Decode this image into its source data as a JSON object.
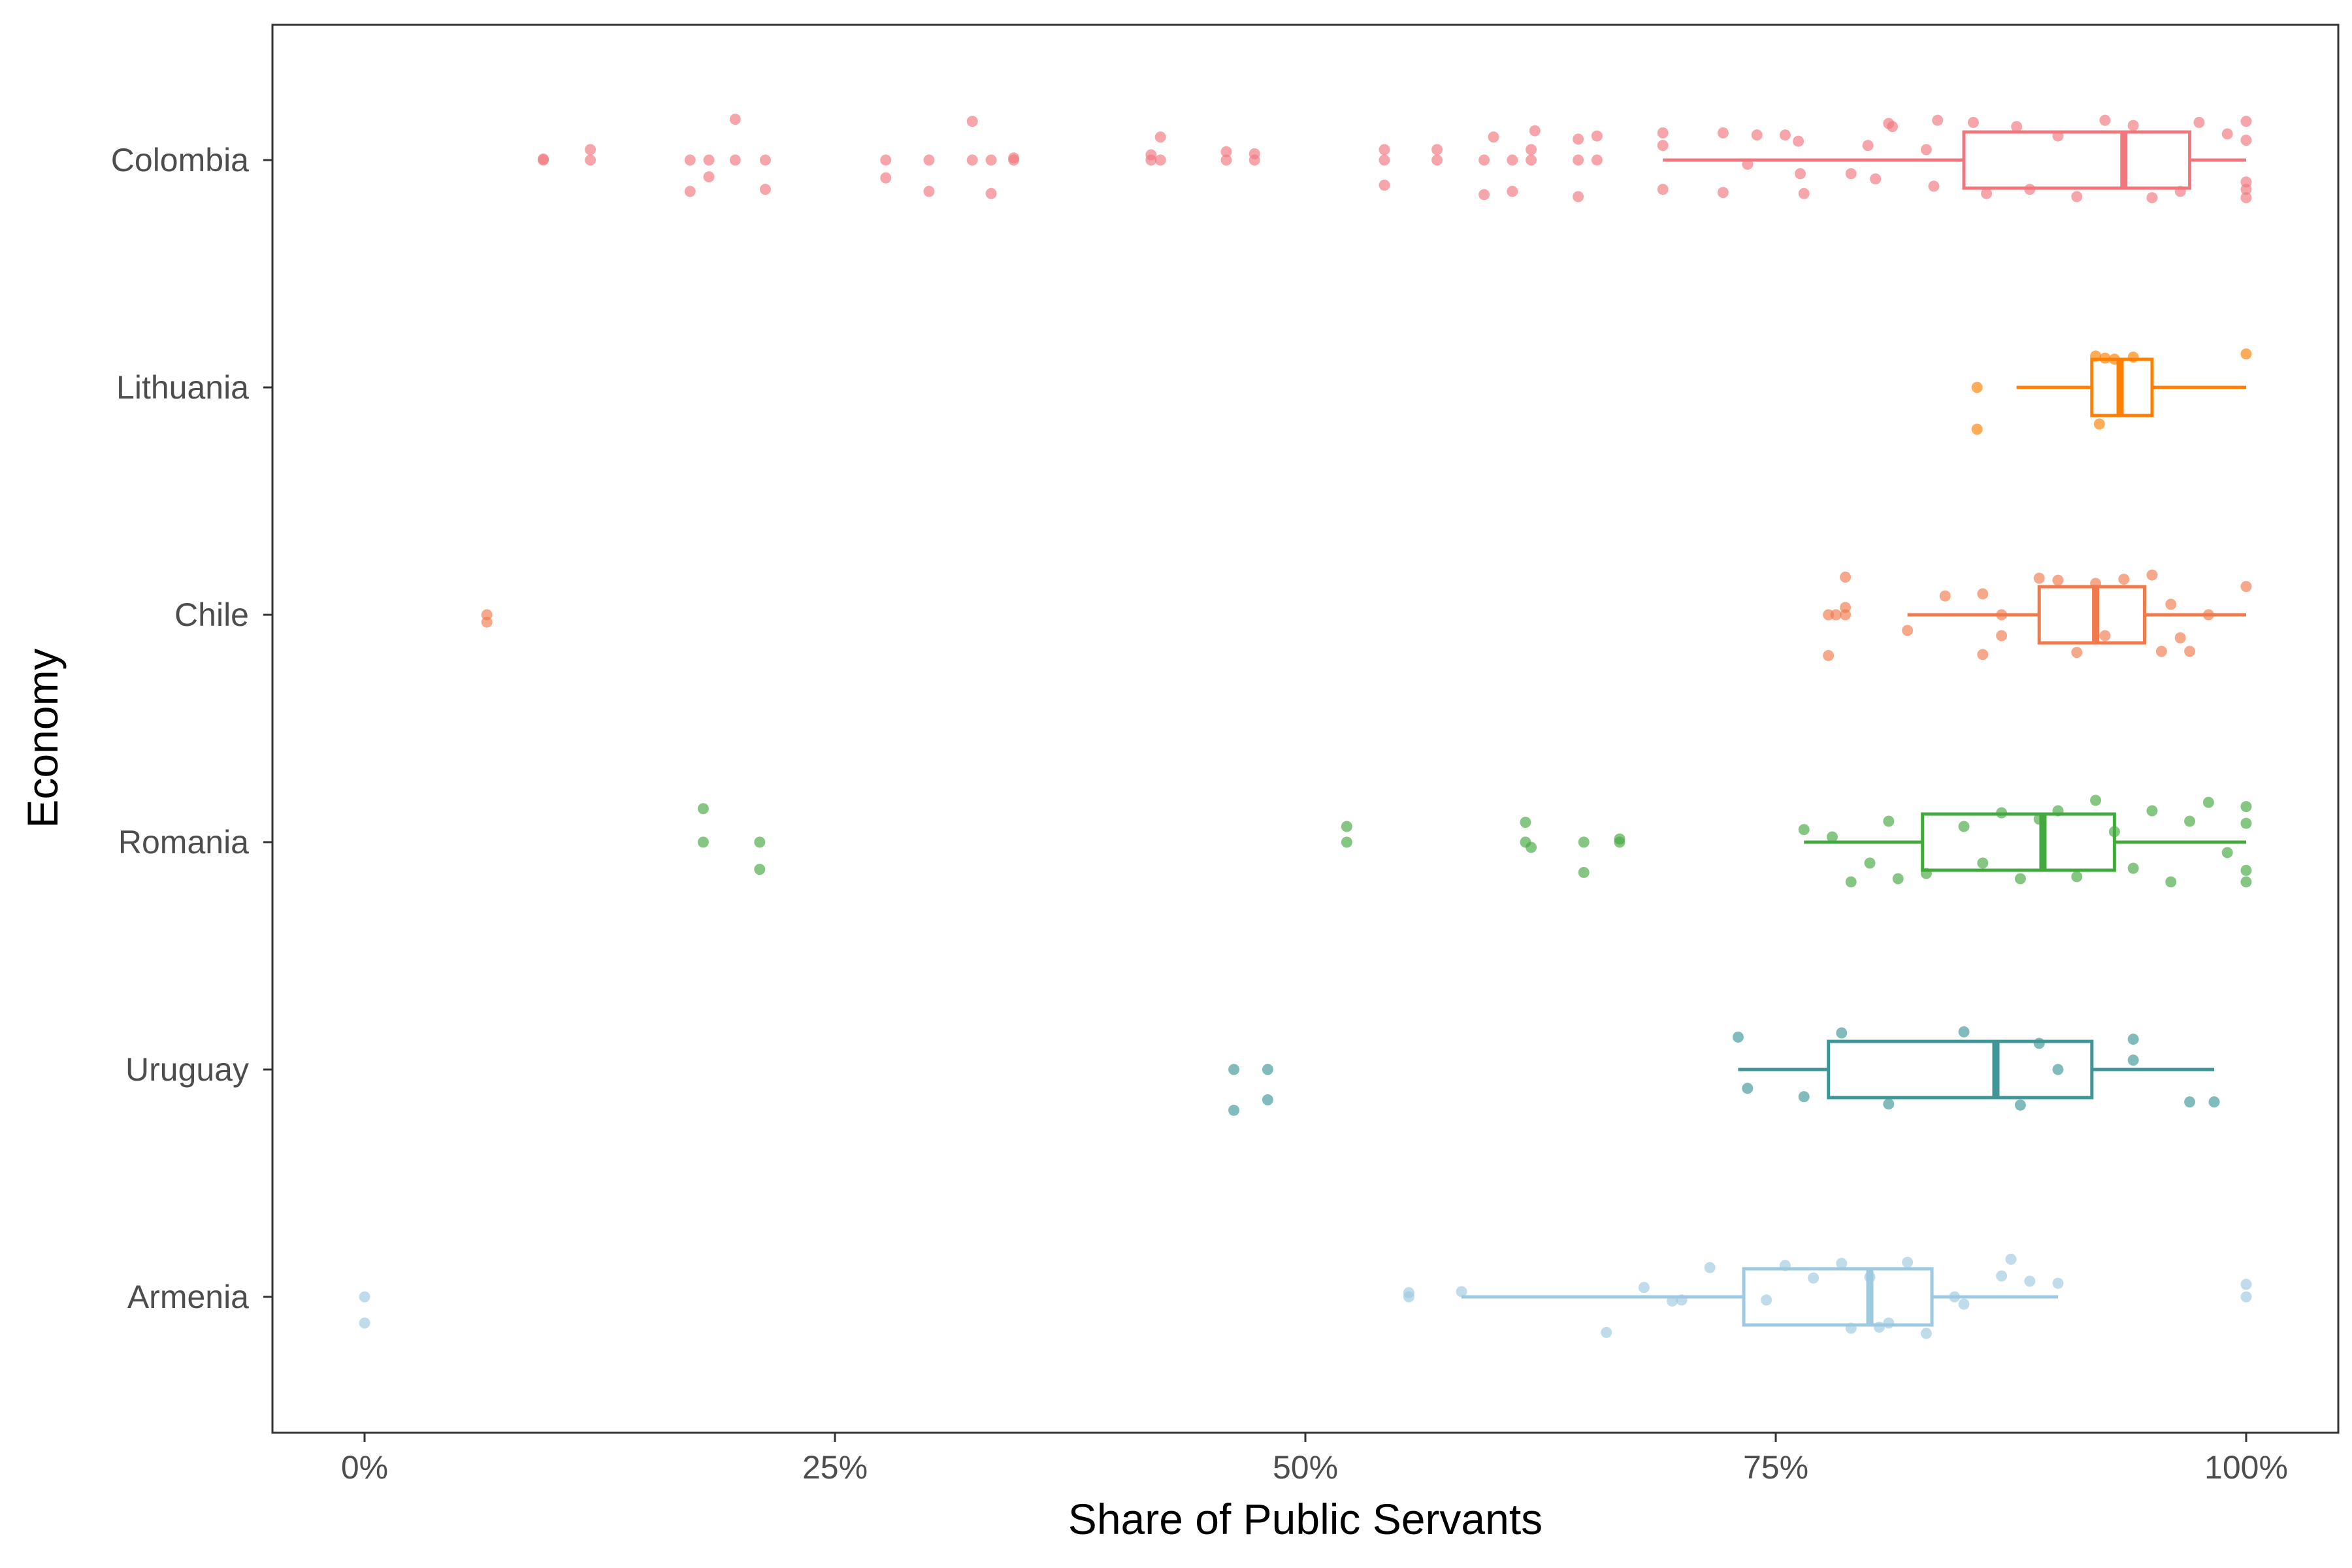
{
  "chart_data": {
    "type": "scatter",
    "subtype": "horizontal boxplot with jittered points",
    "xlabel": "Share of Public Servants",
    "ylabel": "Economy",
    "xlim": [
      0,
      1
    ],
    "x_ticks": [
      {
        "value": 0,
        "label": "0%"
      },
      {
        "value": 0.25,
        "label": "25%"
      },
      {
        "value": 0.5,
        "label": "50%"
      },
      {
        "value": 0.75,
        "label": "75%"
      },
      {
        "value": 1,
        "label": "100%"
      }
    ],
    "grid": false,
    "legend": "none",
    "series": [
      {
        "name": "Colombia",
        "color": "#F1777E",
        "box": {
          "whisker_low": 0.69,
          "q1": 0.85,
          "median": 0.935,
          "q3": 0.97,
          "whisker_high": 1.0
        },
        "points": [
          [
            0.095,
            0.0
          ],
          [
            0.095,
            0.01
          ],
          [
            0.12,
            0.0
          ],
          [
            0.12,
            0.1
          ],
          [
            0.173,
            0.0
          ],
          [
            0.173,
            -0.3
          ],
          [
            0.183,
            0.0
          ],
          [
            0.183,
            -0.16
          ],
          [
            0.197,
            0.0
          ],
          [
            0.197,
            0.39
          ],
          [
            0.213,
            0.0
          ],
          [
            0.213,
            -0.28
          ],
          [
            0.277,
            0.0
          ],
          [
            0.277,
            -0.17
          ],
          [
            0.3,
            0.0
          ],
          [
            0.3,
            -0.3
          ],
          [
            0.323,
            0.0
          ],
          [
            0.323,
            0.37
          ],
          [
            0.333,
            0.0
          ],
          [
            0.333,
            -0.32
          ],
          [
            0.345,
            0.0
          ],
          [
            0.345,
            0.02
          ],
          [
            0.418,
            0.0
          ],
          [
            0.418,
            0.05
          ],
          [
            0.423,
            0.0
          ],
          [
            0.423,
            0.22
          ],
          [
            0.458,
            0.0
          ],
          [
            0.458,
            0.08
          ],
          [
            0.473,
            0.0
          ],
          [
            0.473,
            0.06
          ],
          [
            0.542,
            0.0
          ],
          [
            0.542,
            0.1
          ],
          [
            0.542,
            -0.24
          ],
          [
            0.57,
            0.0
          ],
          [
            0.57,
            0.1
          ],
          [
            0.595,
            0.0
          ],
          [
            0.595,
            -0.33
          ],
          [
            0.6,
            0.22
          ],
          [
            0.61,
            0.0
          ],
          [
            0.61,
            -0.3
          ],
          [
            0.62,
            0.0
          ],
          [
            0.62,
            0.1
          ],
          [
            0.622,
            0.28
          ],
          [
            0.645,
            0.0
          ],
          [
            0.645,
            -0.35
          ],
          [
            0.645,
            0.2
          ],
          [
            0.655,
            0.0
          ],
          [
            0.655,
            0.23
          ],
          [
            0.69,
            0.26
          ],
          [
            0.69,
            0.14
          ],
          [
            0.69,
            -0.28
          ],
          [
            0.722,
            0.26
          ],
          [
            0.722,
            -0.31
          ],
          [
            0.74,
            0.24
          ],
          [
            0.755,
            0.24
          ],
          [
            0.762,
            0.18
          ],
          [
            0.735,
            -0.04
          ],
          [
            0.763,
            -0.13
          ],
          [
            0.79,
            -0.13
          ],
          [
            0.765,
            -0.32
          ],
          [
            0.803,
            -0.18
          ],
          [
            0.799,
            0.14
          ],
          [
            0.81,
            0.35
          ],
          [
            0.812,
            0.32
          ],
          [
            0.836,
            0.38
          ],
          [
            0.83,
            0.1
          ],
          [
            0.834,
            -0.25
          ],
          [
            0.855,
            0.36
          ],
          [
            0.862,
            -0.32
          ],
          [
            0.878,
            0.32
          ],
          [
            0.885,
            -0.28
          ],
          [
            0.9,
            0.23
          ],
          [
            0.91,
            -0.35
          ],
          [
            0.925,
            0.38
          ],
          [
            0.94,
            0.33
          ],
          [
            0.95,
            -0.36
          ],
          [
            0.965,
            -0.3
          ],
          [
            0.975,
            0.36
          ],
          [
            0.99,
            0.25
          ],
          [
            1.0,
            0.37
          ],
          [
            1.0,
            -0.28
          ],
          [
            1.0,
            -0.36
          ],
          [
            1.0,
            -0.21
          ],
          [
            1.0,
            0.19
          ]
        ]
      },
      {
        "name": "Lithuania",
        "color": "#FF8000",
        "box": {
          "whisker_low": 0.878,
          "q1": 0.918,
          "median": 0.933,
          "q3": 0.95,
          "whisker_high": 1.0
        },
        "points": [
          [
            0.857,
            0.0
          ],
          [
            0.857,
            -0.4
          ],
          [
            0.92,
            0.3
          ],
          [
            0.925,
            0.28
          ],
          [
            0.93,
            0.27
          ],
          [
            0.94,
            0.29
          ],
          [
            0.922,
            -0.35
          ],
          [
            1.0,
            0.32
          ]
        ]
      },
      {
        "name": "Chile",
        "color": "#F07A4B",
        "box": {
          "whisker_low": 0.82,
          "q1": 0.89,
          "median": 0.92,
          "q3": 0.946,
          "whisker_high": 1.0
        },
        "points": [
          [
            0.065,
            0.0
          ],
          [
            0.065,
            -0.07
          ],
          [
            0.778,
            0.0
          ],
          [
            0.782,
            0.0
          ],
          [
            0.787,
            0.0
          ],
          [
            0.787,
            0.36
          ],
          [
            0.787,
            0.07
          ],
          [
            0.778,
            -0.39
          ],
          [
            0.82,
            -0.15
          ],
          [
            0.84,
            0.18
          ],
          [
            0.86,
            0.2
          ],
          [
            0.86,
            -0.38
          ],
          [
            0.87,
            0.0
          ],
          [
            0.87,
            -0.2
          ],
          [
            0.89,
            0.35
          ],
          [
            0.9,
            0.33
          ],
          [
            0.91,
            -0.36
          ],
          [
            0.92,
            0.3
          ],
          [
            0.925,
            -0.2
          ],
          [
            0.935,
            0.34
          ],
          [
            0.95,
            0.38
          ],
          [
            0.955,
            -0.35
          ],
          [
            0.96,
            0.1
          ],
          [
            0.965,
            -0.22
          ],
          [
            0.97,
            -0.35
          ],
          [
            0.98,
            0.0
          ],
          [
            1.0,
            0.27
          ]
        ]
      },
      {
        "name": "Romania",
        "color": "#43A93F",
        "box": {
          "whisker_low": 0.765,
          "q1": 0.828,
          "median": 0.892,
          "q3": 0.93,
          "whisker_high": 1.0
        },
        "points": [
          [
            0.18,
            0.0
          ],
          [
            0.18,
            0.32
          ],
          [
            0.21,
            0.0
          ],
          [
            0.21,
            -0.26
          ],
          [
            0.522,
            0.0
          ],
          [
            0.522,
            0.15
          ],
          [
            0.617,
            0.0
          ],
          [
            0.617,
            0.19
          ],
          [
            0.62,
            -0.05
          ],
          [
            0.648,
            0.0
          ],
          [
            0.648,
            -0.29
          ],
          [
            0.667,
            0.0
          ],
          [
            0.667,
            0.03
          ],
          [
            0.765,
            0.12
          ],
          [
            0.78,
            0.05
          ],
          [
            0.79,
            -0.38
          ],
          [
            0.8,
            -0.2
          ],
          [
            0.81,
            0.2
          ],
          [
            0.815,
            -0.35
          ],
          [
            0.83,
            -0.3
          ],
          [
            0.85,
            0.15
          ],
          [
            0.86,
            -0.2
          ],
          [
            0.87,
            0.28
          ],
          [
            0.88,
            -0.35
          ],
          [
            0.89,
            0.22
          ],
          [
            0.9,
            0.3
          ],
          [
            0.91,
            -0.33
          ],
          [
            0.92,
            0.4
          ],
          [
            0.93,
            0.1
          ],
          [
            0.94,
            -0.25
          ],
          [
            0.95,
            0.3
          ],
          [
            0.96,
            -0.38
          ],
          [
            0.97,
            0.2
          ],
          [
            0.98,
            0.38
          ],
          [
            0.99,
            -0.1
          ],
          [
            1.0,
            0.34
          ],
          [
            1.0,
            -0.27
          ],
          [
            1.0,
            -0.38
          ],
          [
            1.0,
            0.18
          ]
        ]
      },
      {
        "name": "Uruguay",
        "color": "#3E9796",
        "box": {
          "whisker_low": 0.73,
          "q1": 0.778,
          "median": 0.867,
          "q3": 0.918,
          "whisker_high": 0.983
        },
        "points": [
          [
            0.462,
            0.0
          ],
          [
            0.462,
            -0.39
          ],
          [
            0.48,
            0.0
          ],
          [
            0.48,
            -0.29
          ],
          [
            0.73,
            0.31
          ],
          [
            0.735,
            -0.18
          ],
          [
            0.765,
            -0.26
          ],
          [
            0.785,
            0.35
          ],
          [
            0.81,
            -0.33
          ],
          [
            0.85,
            0.36
          ],
          [
            0.88,
            -0.34
          ],
          [
            0.89,
            0.25
          ],
          [
            0.9,
            0.0
          ],
          [
            0.94,
            0.29
          ],
          [
            0.94,
            0.09
          ],
          [
            0.97,
            -0.31
          ],
          [
            0.983,
            -0.31
          ]
        ]
      },
      {
        "name": "Armenia",
        "color": "#9ECAE1",
        "box": {
          "whisker_low": 0.583,
          "q1": 0.733,
          "median": 0.8,
          "q3": 0.833,
          "whisker_high": 0.9
        },
        "points": [
          [
            0.0,
            0.0
          ],
          [
            0.0,
            -0.25
          ],
          [
            0.555,
            0.0
          ],
          [
            0.555,
            0.04
          ],
          [
            0.583,
            0.05
          ],
          [
            0.66,
            -0.34
          ],
          [
            0.68,
            0.09
          ],
          [
            0.695,
            -0.04
          ],
          [
            0.7,
            -0.03
          ],
          [
            0.715,
            0.28
          ],
          [
            0.745,
            -0.03
          ],
          [
            0.755,
            0.3
          ],
          [
            0.77,
            0.18
          ],
          [
            0.785,
            0.32
          ],
          [
            0.79,
            -0.3
          ],
          [
            0.8,
            0.19
          ],
          [
            0.805,
            -0.29
          ],
          [
            0.81,
            -0.25
          ],
          [
            0.82,
            0.33
          ],
          [
            0.83,
            -0.35
          ],
          [
            0.845,
            0.0
          ],
          [
            0.85,
            -0.07
          ],
          [
            0.87,
            0.2
          ],
          [
            0.875,
            0.36
          ],
          [
            0.885,
            0.15
          ],
          [
            0.9,
            0.13
          ],
          [
            1.0,
            0.12
          ],
          [
            1.0,
            0.0
          ]
        ]
      }
    ]
  }
}
